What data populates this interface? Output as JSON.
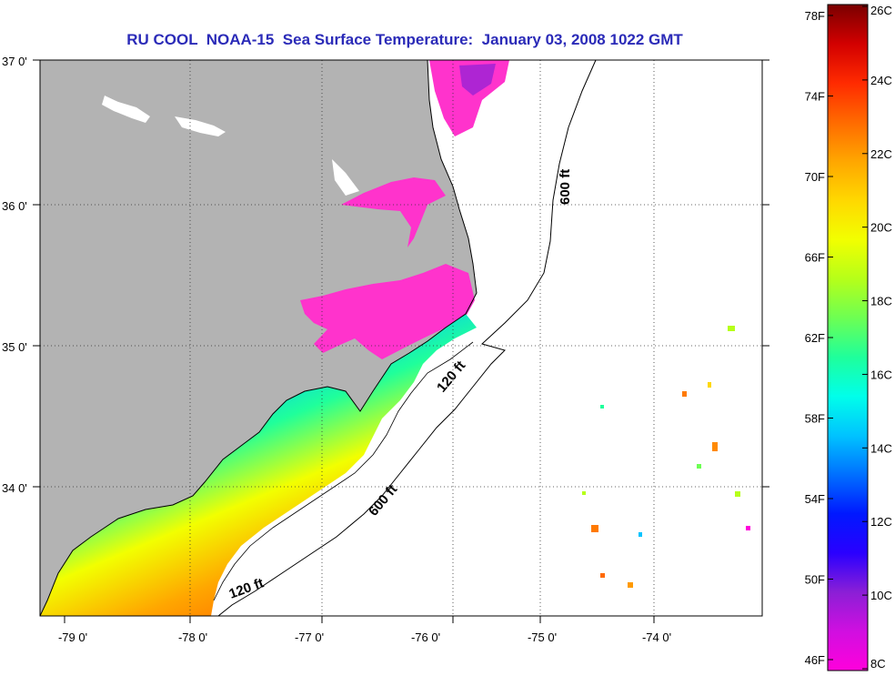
{
  "title": "RU COOL  NOAA-15  Sea Surface Temperature:  January 03, 2008 1022 GMT",
  "map": {
    "latitude_ticks": [
      "37 0'",
      "36 0'",
      "35 0'",
      "34 0'"
    ],
    "longitude_ticks": [
      "-79 0'",
      "-78 0'",
      "-77 0'",
      "-76 0'",
      "-75 0'",
      "-74 0'"
    ],
    "contour_labels": [
      "600 ft",
      "120 ft",
      "600 ft",
      "120 ft"
    ],
    "land_color": "#b3b3b3",
    "ocean_color": "#ffffff"
  },
  "colorbar": {
    "fahrenheit_labels": [
      "78F",
      "74F",
      "70F",
      "66F",
      "62F",
      "58F",
      "54F",
      "50F",
      "46F"
    ],
    "celsius_labels": [
      "26C",
      "24C",
      "22C",
      "20C",
      "18C",
      "16C",
      "14C",
      "12C",
      "10C",
      "8C"
    ],
    "colors_top_to_bottom": [
      "#7a0000",
      "#d20000",
      "#ff2a00",
      "#ff6a00",
      "#ffa600",
      "#ffd800",
      "#f2ff00",
      "#b6ff19",
      "#6dff53",
      "#1fff9b",
      "#00ffea",
      "#00c3ff",
      "#0070ff",
      "#0018ff",
      "#2a00ff",
      "#8b1fd6",
      "#d00fe0",
      "#ff00dc"
    ]
  }
}
